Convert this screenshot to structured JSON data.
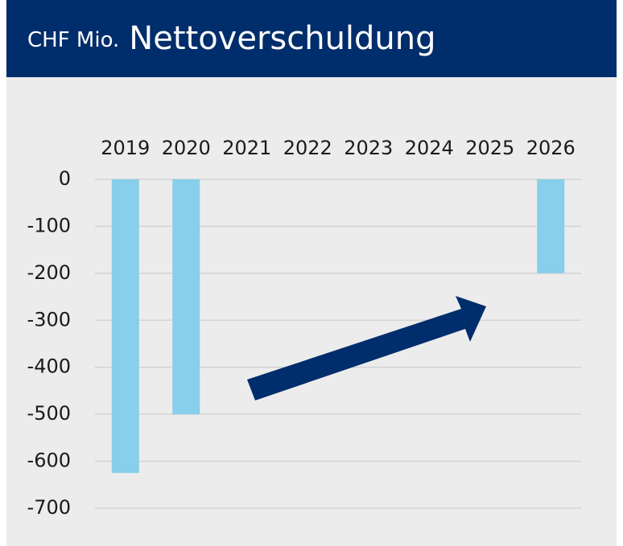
{
  "chart_data": {
    "type": "bar",
    "unit_label": "CHF Mio.",
    "title": "Nettoverschuldung",
    "categories": [
      "2019",
      "2020",
      "2021",
      "2022",
      "2023",
      "2024",
      "2025",
      "2026"
    ],
    "values": [
      -625,
      -500,
      null,
      null,
      null,
      null,
      null,
      -200
    ],
    "color": "#87cfea",
    "ylim": [
      -700,
      0
    ],
    "yticks": [
      0,
      -100,
      -200,
      -300,
      -400,
      -500,
      -600,
      -700
    ],
    "grid": true
  }
}
